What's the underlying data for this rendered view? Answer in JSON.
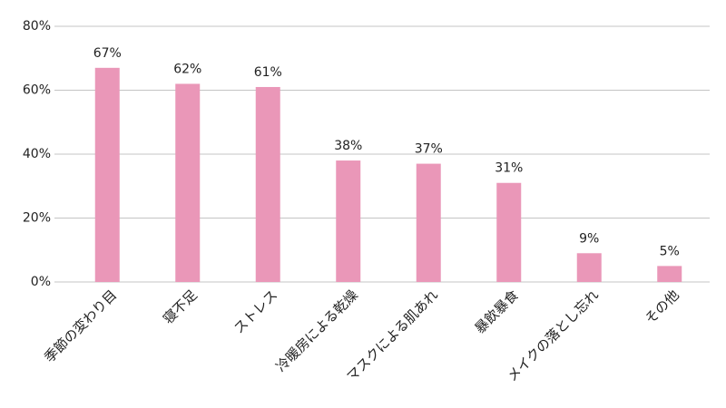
{
  "chart_data": {
    "type": "bar",
    "categories": [
      "季節の変わり目",
      "寝不足",
      "ストレス",
      "冷暖房による乾燥",
      "マスクによる肌あれ",
      "暴飲暴食",
      "メイクの落とし忘れ",
      "その他"
    ],
    "values": [
      67,
      62,
      61,
      38,
      37,
      31,
      9,
      5
    ],
    "value_labels": [
      "67%",
      "62%",
      "61%",
      "38%",
      "37%",
      "31%",
      "9%",
      "5%"
    ],
    "color": "#ea97b8",
    "ylim": [
      0,
      80
    ],
    "yticks": [
      {
        "value": 0,
        "label": "0%"
      },
      {
        "value": 20,
        "label": "20%"
      },
      {
        "value": 40,
        "label": "40%"
      },
      {
        "value": 60,
        "label": "60%"
      },
      {
        "value": 80,
        "label": "80%"
      }
    ],
    "grid": true
  }
}
